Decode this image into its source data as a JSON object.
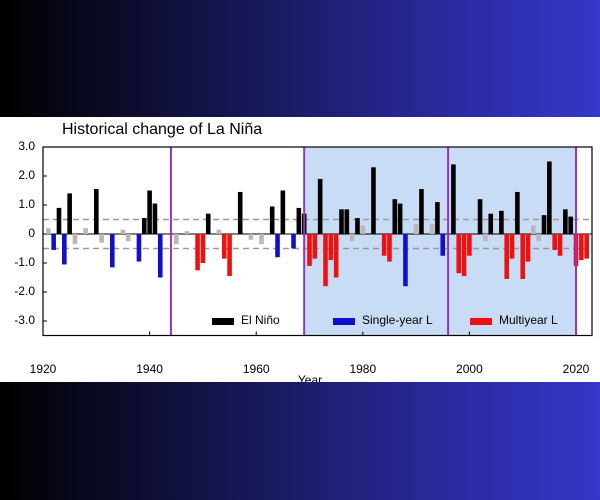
{
  "chart_data": {
    "type": "bar",
    "title": "Historical change of La Niña",
    "x_label": "Year",
    "xlim": [
      1920,
      2023
    ],
    "xticks": [
      1920,
      1940,
      1960,
      1980,
      2000,
      2020
    ],
    "ylim": [
      -3.5,
      3.0
    ],
    "yticks": [
      {
        "value": 3,
        "label": "3.0"
      },
      {
        "value": 2,
        "label": "2.0"
      },
      {
        "value": 1,
        "label": "1.0"
      },
      0,
      {
        "value": -1,
        "label": "-1.0"
      },
      {
        "value": -2,
        "label": "-2.0"
      },
      {
        "value": -3,
        "label": "-3.0"
      }
    ],
    "shaded_periods": [
      [
        1969,
        1996
      ],
      [
        1996,
        2020
      ]
    ],
    "shade_color": "#c9dcf6",
    "vlines": [
      1944,
      1969,
      1996,
      2020
    ],
    "vline_color": "#9933bb",
    "hlines": [
      0.5,
      -0.5
    ],
    "legend": "bottom",
    "series": [
      {
        "name": "El Niño",
        "color": "#000000",
        "x": [
          1923,
          1925,
          1930,
          1939,
          1940,
          1941,
          1951,
          1957,
          1963,
          1965,
          1968,
          1969,
          1972,
          1976,
          1977,
          1979,
          1982,
          1986,
          1987,
          1991,
          1994,
          1997,
          2002,
          2004,
          2006,
          2009,
          2014,
          2015,
          2018,
          2019
        ],
        "values": [
          0.9,
          1.4,
          1.55,
          0.55,
          1.5,
          1.05,
          0.7,
          1.45,
          0.95,
          1.5,
          0.9,
          0.7,
          1.9,
          0.85,
          0.85,
          0.55,
          2.3,
          1.2,
          1.05,
          1.55,
          1.1,
          2.4,
          1.2,
          0.7,
          0.8,
          1.45,
          0.65,
          2.5,
          0.85,
          0.6
        ]
      },
      {
        "name": "Single-year L",
        "color": "#1010cc",
        "x": [
          1922,
          1924,
          1933,
          1938,
          1942,
          1964,
          1967,
          1988,
          1995
        ],
        "values": [
          -0.55,
          -1.05,
          -1.15,
          -0.95,
          -1.5,
          -0.8,
          -0.5,
          -1.8,
          -0.75
        ]
      },
      {
        "name": "Multiyear L",
        "color": "#ee1111",
        "x": [
          1949,
          1950,
          1954,
          1955,
          1970,
          1971,
          1973,
          1974,
          1975,
          1984,
          1985,
          1998,
          1999,
          2000,
          2007,
          2008,
          2010,
          2011,
          2016,
          2017,
          2020,
          2021,
          2022
        ],
        "values": [
          -1.25,
          -1.0,
          -0.85,
          -1.45,
          -1.1,
          -0.85,
          -1.8,
          -0.9,
          -1.5,
          -0.75,
          -0.95,
          -1.35,
          -1.45,
          -0.75,
          -1.55,
          -0.85,
          -1.55,
          -0.95,
          -0.55,
          -0.75,
          -1.1,
          -0.9,
          -0.85
        ]
      },
      {
        "color": "#b8b8b8",
        "x": [
          1921,
          1926,
          1928,
          1931,
          1935,
          1936,
          1945,
          1947,
          1953,
          1959,
          1961,
          1978,
          1980,
          1990,
          1993,
          2003,
          2012,
          2013
        ],
        "values": [
          0.2,
          -0.35,
          0.2,
          -0.3,
          0.15,
          -0.25,
          -0.35,
          0.1,
          0.15,
          -0.2,
          -0.35,
          -0.25,
          0.3,
          0.35,
          0.35,
          -0.25,
          0.3,
          -0.25
        ]
      }
    ]
  }
}
